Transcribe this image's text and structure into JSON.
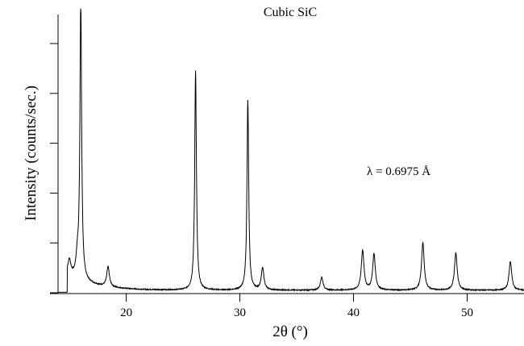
{
  "chart_data": {
    "type": "line",
    "title": "Cubic SiC",
    "xlabel": "2θ (°)",
    "xlabel_main": "2θ (",
    "xlabel_sup": "o",
    "xlabel_end": ")",
    "ylabel": "Intensity (counts/sec.)",
    "annotation": "λ = 0.6975 Å",
    "xlim": [
      14,
      55
    ],
    "ylim": [
      0,
      5.6
    ],
    "xticks": [
      20,
      30,
      40,
      50
    ],
    "xtick_labels": [
      "20",
      "30",
      "40",
      "50"
    ],
    "yticks": [
      0,
      1,
      2,
      3,
      4,
      5
    ],
    "ytick_labels_shown": false,
    "grid": false,
    "peaks": [
      {
        "x": 15.0,
        "y": 0.28
      },
      {
        "x": 15.7,
        "y": 0.35
      },
      {
        "x": 16.0,
        "y": 5.55
      },
      {
        "x": 18.4,
        "y": 0.4
      },
      {
        "x": 26.1,
        "y": 4.4
      },
      {
        "x": 30.7,
        "y": 3.8
      },
      {
        "x": 32.0,
        "y": 0.44
      },
      {
        "x": 37.2,
        "y": 0.26
      },
      {
        "x": 40.8,
        "y": 0.8
      },
      {
        "x": 41.8,
        "y": 0.72
      },
      {
        "x": 46.1,
        "y": 0.95
      },
      {
        "x": 49.0,
        "y": 0.75
      },
      {
        "x": 53.8,
        "y": 0.58
      }
    ],
    "baseline": 0.05
  }
}
